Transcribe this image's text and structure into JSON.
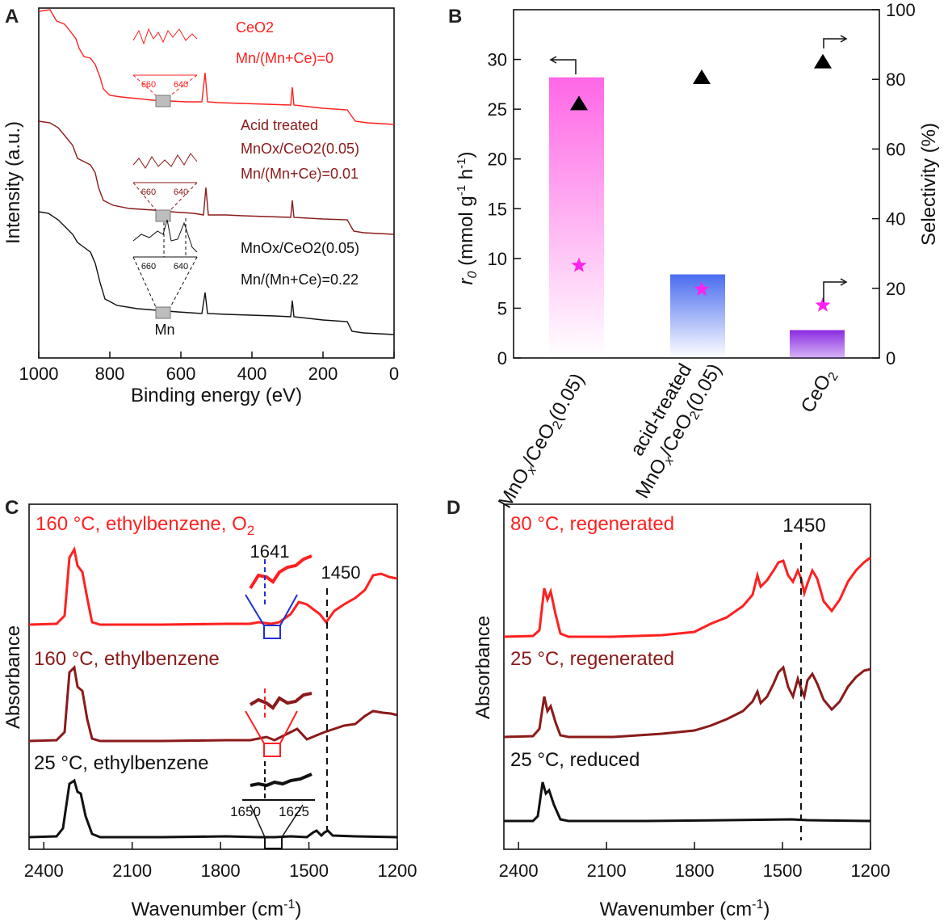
{
  "chart_data": [
    {
      "panel": "A",
      "type": "line",
      "xlabel": "Binding energy (eV)",
      "ylabel": "Intensity (a.u.)",
      "xlim": [
        1000,
        0
      ],
      "xticks": [
        "1000",
        "800",
        "600",
        "400",
        "200",
        "0"
      ],
      "series": [
        {
          "label_lines": [
            "CeO2",
            "Mn/(Mn+Ce)=0"
          ],
          "color": "#ff2020",
          "inset_ticks": [
            "660",
            "640"
          ]
        },
        {
          "label_lines": [
            "Acid treated",
            "MnOx/CeO2(0.05)",
            "Mn/(Mn+Ce)=0.01"
          ],
          "color": "#8b1a1a",
          "inset_ticks": [
            "660",
            "640"
          ]
        },
        {
          "label_lines": [
            "MnOx/CeO2(0.05)",
            "Mn/(Mn+Ce)=0.22"
          ],
          "color": "#111111",
          "inset_ticks": [
            "660",
            "640"
          ]
        }
      ],
      "annotation": "Mn"
    },
    {
      "panel": "B",
      "type": "bar",
      "categories": [
        "MnOx/CeO2(0.05)",
        "acid-treated MnOx/CeO2(0.05)",
        "CeO2"
      ],
      "ylabel_left": "r0 (mmol g-1 h-1)",
      "ylabel_right": "Selectivity (%)",
      "ylim_left": [
        0,
        35
      ],
      "yticks_left": [
        "0",
        "5",
        "10",
        "15",
        "20",
        "25",
        "30"
      ],
      "ylim_right": [
        0,
        100
      ],
      "yticks_right": [
        "0",
        "20",
        "40",
        "60",
        "80",
        "100"
      ],
      "bars": [
        28.2,
        8.4,
        2.8
      ],
      "bar_colors": [
        "#ff66e6",
        "#4a6cf0",
        "#8a2be2"
      ],
      "triangles_right": [
        73,
        80.5,
        85
      ],
      "stars_left": [
        9.3,
        6.9,
        5.3
      ]
    },
    {
      "panel": "C",
      "type": "line",
      "xlabel": "Wavenumber (cm-1)",
      "ylabel": "Absorbance",
      "xlim": [
        2450,
        1200
      ],
      "xticks": [
        "2400",
        "2100",
        "1800",
        "1500",
        "1200"
      ],
      "series": [
        {
          "name": "160 °C, ethylbenzene, O2",
          "color": "#ff2020"
        },
        {
          "name": "160 °C, ethylbenzene",
          "color": "#8b1a1a"
        },
        {
          "name": "25 °C, ethylbenzene",
          "color": "#111111"
        }
      ],
      "annotations": [
        "1641",
        "1450"
      ],
      "inset_ticks": [
        "1650",
        "1625"
      ]
    },
    {
      "panel": "D",
      "type": "line",
      "xlabel": "Wavenumber (cm-1)",
      "ylabel": "Absorbance",
      "xlim": [
        2450,
        1200
      ],
      "xticks": [
        "2400",
        "2100",
        "1800",
        "1500",
        "1200"
      ],
      "series": [
        {
          "name": "80 °C, regenerated",
          "color": "#ff2020"
        },
        {
          "name": "25 °C, regenerated",
          "color": "#8b1a1a"
        },
        {
          "name": "25 °C, reduced",
          "color": "#111111"
        }
      ],
      "annotations": [
        "1450"
      ]
    }
  ]
}
